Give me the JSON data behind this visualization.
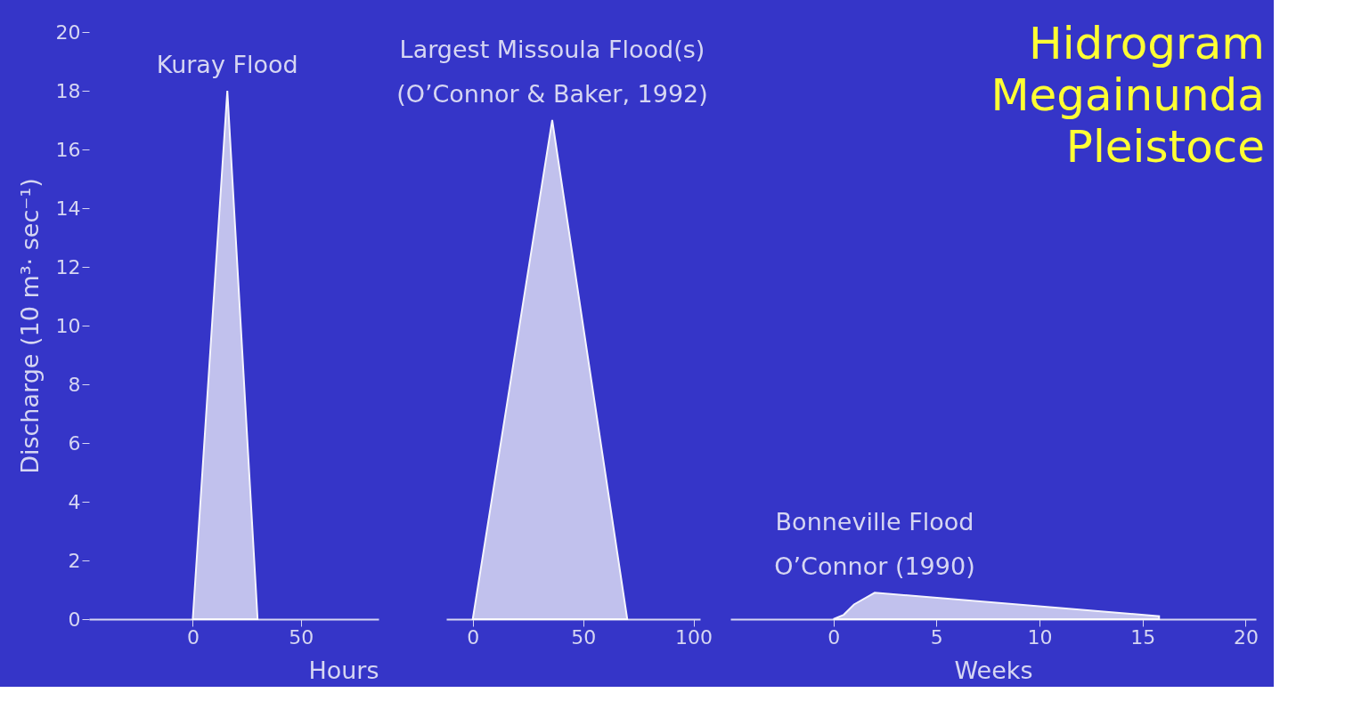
{
  "chart_data": [
    {
      "type": "area",
      "ylabel": "Discharge (10 m³· sec⁻¹)",
      "xlabel": "Hours",
      "xlim": [
        -48,
        86
      ],
      "xticks": [
        0,
        50
      ],
      "ylim": [
        0,
        20
      ],
      "yticks": [
        0,
        2,
        4,
        6,
        8,
        10,
        12,
        14,
        16,
        18,
        20
      ],
      "grid": false,
      "series": [
        {
          "name": "Kuray Flood",
          "color": "#c9c9ef",
          "x": [
            0,
            16,
            30
          ],
          "values": [
            0,
            18,
            0
          ]
        }
      ]
    },
    {
      "type": "area",
      "xlim": [
        -12,
        103
      ],
      "xticks": [
        0,
        50,
        100
      ],
      "ylim": [
        0,
        20
      ],
      "grid": false,
      "tick_labels": "x",
      "annotations": [
        "(O’Connor & Baker, 1992)"
      ],
      "series": [
        {
          "name": "Largest Missoula Flood(s)",
          "color": "#c9c9ef",
          "x": [
            0,
            36,
            70
          ],
          "values": [
            0,
            17,
            0
          ]
        }
      ]
    },
    {
      "type": "area",
      "title": "Hidrogram\nMegainunda\nPleistoce",
      "xlabel": "Weeks",
      "xlim": [
        -5,
        20.5
      ],
      "xticks": [
        0,
        5,
        10,
        15,
        20
      ],
      "ylim": [
        0,
        20
      ],
      "grid": false,
      "tick_labels": "x",
      "annotations": [
        "O’Connor (1990)"
      ],
      "series": [
        {
          "name": "Bonneville Flood",
          "color": "#c9c9ef",
          "x": [
            0,
            0.5,
            1,
            2,
            15.8
          ],
          "values": [
            0,
            0.15,
            0.5,
            0.9,
            0.1
          ]
        }
      ]
    }
  ]
}
